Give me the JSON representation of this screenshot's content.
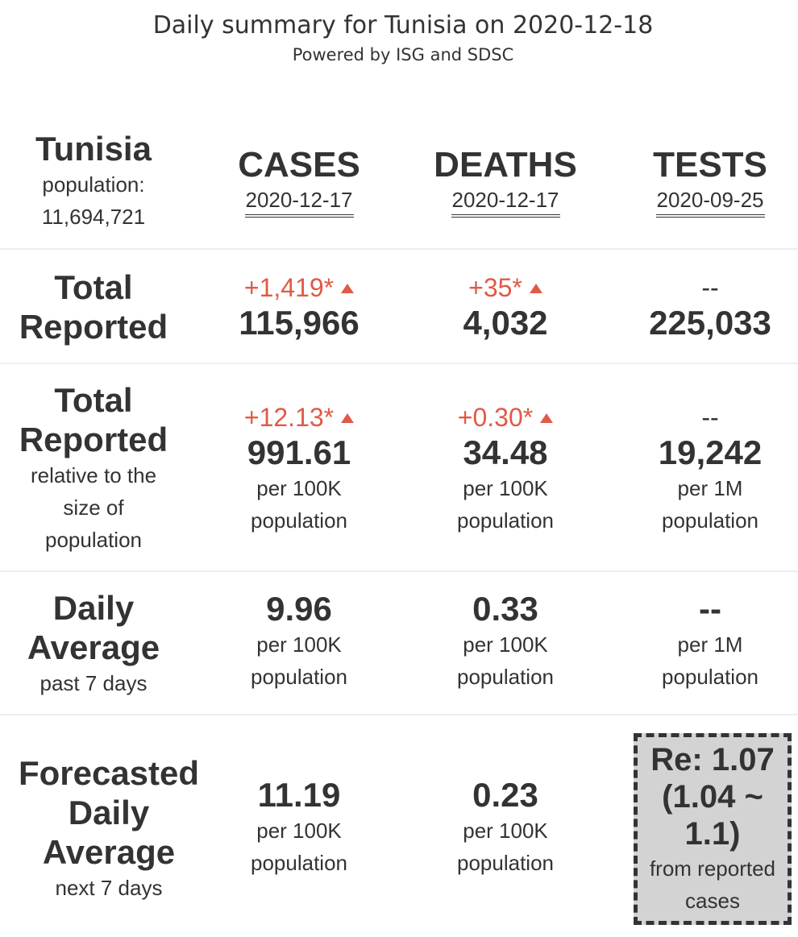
{
  "header": {
    "title": "Daily summary for Tunisia on 2020-12-18",
    "subtitle": "Powered by ISG and SDSC"
  },
  "country": {
    "name": "Tunisia",
    "population_label": "population:",
    "population": "11,694,721"
  },
  "columns": [
    {
      "label": "CASES",
      "date": "2020-12-17"
    },
    {
      "label": "DEATHS",
      "date": "2020-12-17"
    },
    {
      "label": "TESTS",
      "date": "2020-09-25"
    }
  ],
  "rows": {
    "total": {
      "label_line1": "Total",
      "label_line2": "Reported",
      "cases": {
        "delta": "+1,419*",
        "value": "115,966"
      },
      "deaths": {
        "delta": "+35*",
        "value": "4,032"
      },
      "tests": {
        "delta": "--",
        "value": "225,033"
      }
    },
    "relative": {
      "label_line1": "Total",
      "label_line2": "Reported",
      "label_sub1": "relative to the",
      "label_sub2": "size of",
      "label_sub3": "population",
      "cases": {
        "delta": "+12.13*",
        "value": "991.61",
        "unit1": "per 100K",
        "unit2": "population"
      },
      "deaths": {
        "delta": "+0.30*",
        "value": "34.48",
        "unit1": "per 100K",
        "unit2": "population"
      },
      "tests": {
        "delta": "--",
        "value": "19,242",
        "unit1": "per 1M",
        "unit2": "population"
      }
    },
    "daily": {
      "label_line1": "Daily",
      "label_line2": "Average",
      "label_sub": "past 7 days",
      "cases": {
        "value": "9.96",
        "unit1": "per 100K",
        "unit2": "population"
      },
      "deaths": {
        "value": "0.33",
        "unit1": "per 100K",
        "unit2": "population"
      },
      "tests": {
        "value": "--",
        "unit1": "per 1M",
        "unit2": "population"
      }
    },
    "forecast": {
      "label_line1": "Forecasted",
      "label_line2": "Daily",
      "label_line3": "Average",
      "label_sub": "next 7 days",
      "cases": {
        "value": "11.19",
        "unit1": "per 100K",
        "unit2": "population"
      },
      "deaths": {
        "value": "0.23",
        "unit1": "per 100K",
        "unit2": "population"
      },
      "re": {
        "value_line1": "Re: 1.07",
        "value_line2": "(1.04 ~",
        "value_line3": "1.1)",
        "sub_line1": "from reported",
        "sub_line2": "cases"
      }
    }
  },
  "colors": {
    "text": "#333333",
    "increase": "#e05a47",
    "re_box_bg": "#d3d3d3",
    "separator": "#eeeeee"
  },
  "icons": {
    "increase": "triangle-up-icon"
  }
}
